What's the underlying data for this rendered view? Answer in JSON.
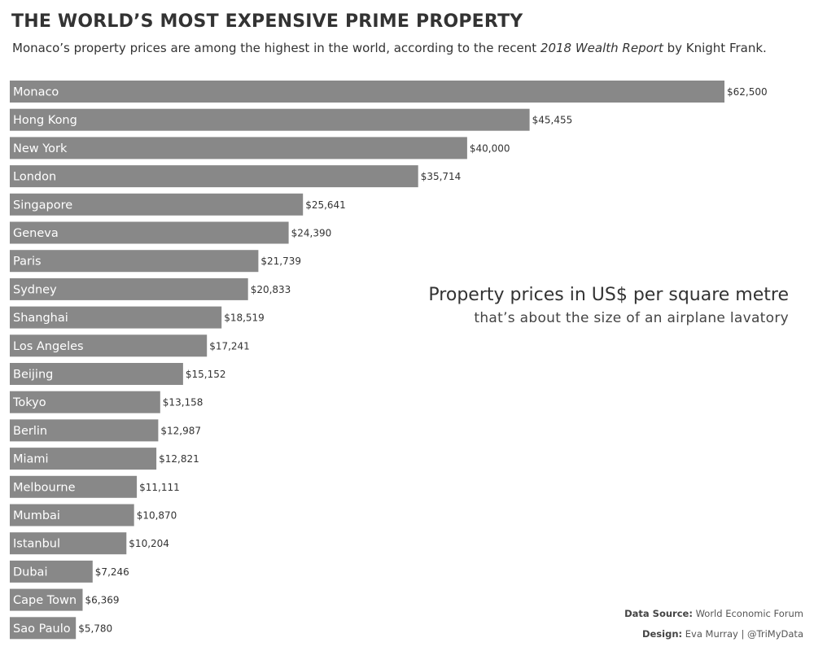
{
  "title": "THE WORLD’S MOST EXPENSIVE PRIME PROPERTY",
  "subtitle": {
    "before": "Monaco’s property prices are among the highest in the world, according to the recent ",
    "italic": "2018 Wealth Report",
    "after": " by Knight Frank."
  },
  "annotation": {
    "line1": "Property prices in US$ per square metre",
    "line2": "that’s about the  size of an airplane  lavatory"
  },
  "credits": {
    "source_label": "Data Source:",
    "source_value": " World Economic Forum",
    "design_label": "Design:",
    "design_value": " Eva Murray | @TriMyData"
  },
  "colors": {
    "bar": "#888888",
    "bar_text": "#ffffff",
    "text": "#333333"
  },
  "chart_data": {
    "type": "bar",
    "orientation": "horizontal",
    "title": "THE WORLD’S MOST EXPENSIVE PRIME PROPERTY",
    "xlabel": "",
    "ylabel": "",
    "xlim": [
      0,
      62500
    ],
    "categories": [
      "Monaco",
      "Hong Kong",
      "New York",
      "London",
      "Singapore",
      "Geneva",
      "Paris",
      "Sydney",
      "Shanghai",
      "Los Angeles",
      "Beijing",
      "Tokyo",
      "Berlin",
      "Miami",
      "Melbourne",
      "Mumbai",
      "Istanbul",
      "Dubai",
      "Cape Town",
      "Sao Paulo"
    ],
    "values": [
      62500,
      45455,
      40000,
      35714,
      25641,
      24390,
      21739,
      20833,
      18519,
      17241,
      15152,
      13158,
      12987,
      12821,
      11111,
      10870,
      10204,
      7246,
      6369,
      5780
    ],
    "value_labels": [
      "$62,500",
      "$45,455",
      "$40,000",
      "$35,714",
      "$25,641",
      "$24,390",
      "$21,739",
      "$20,833",
      "$18,519",
      "$17,241",
      "$15,152",
      "$13,158",
      "$12,987",
      "$12,821",
      "$11,111",
      "$10,870",
      "$10,204",
      "$7,246",
      "$6,369",
      "$5,780"
    ]
  }
}
